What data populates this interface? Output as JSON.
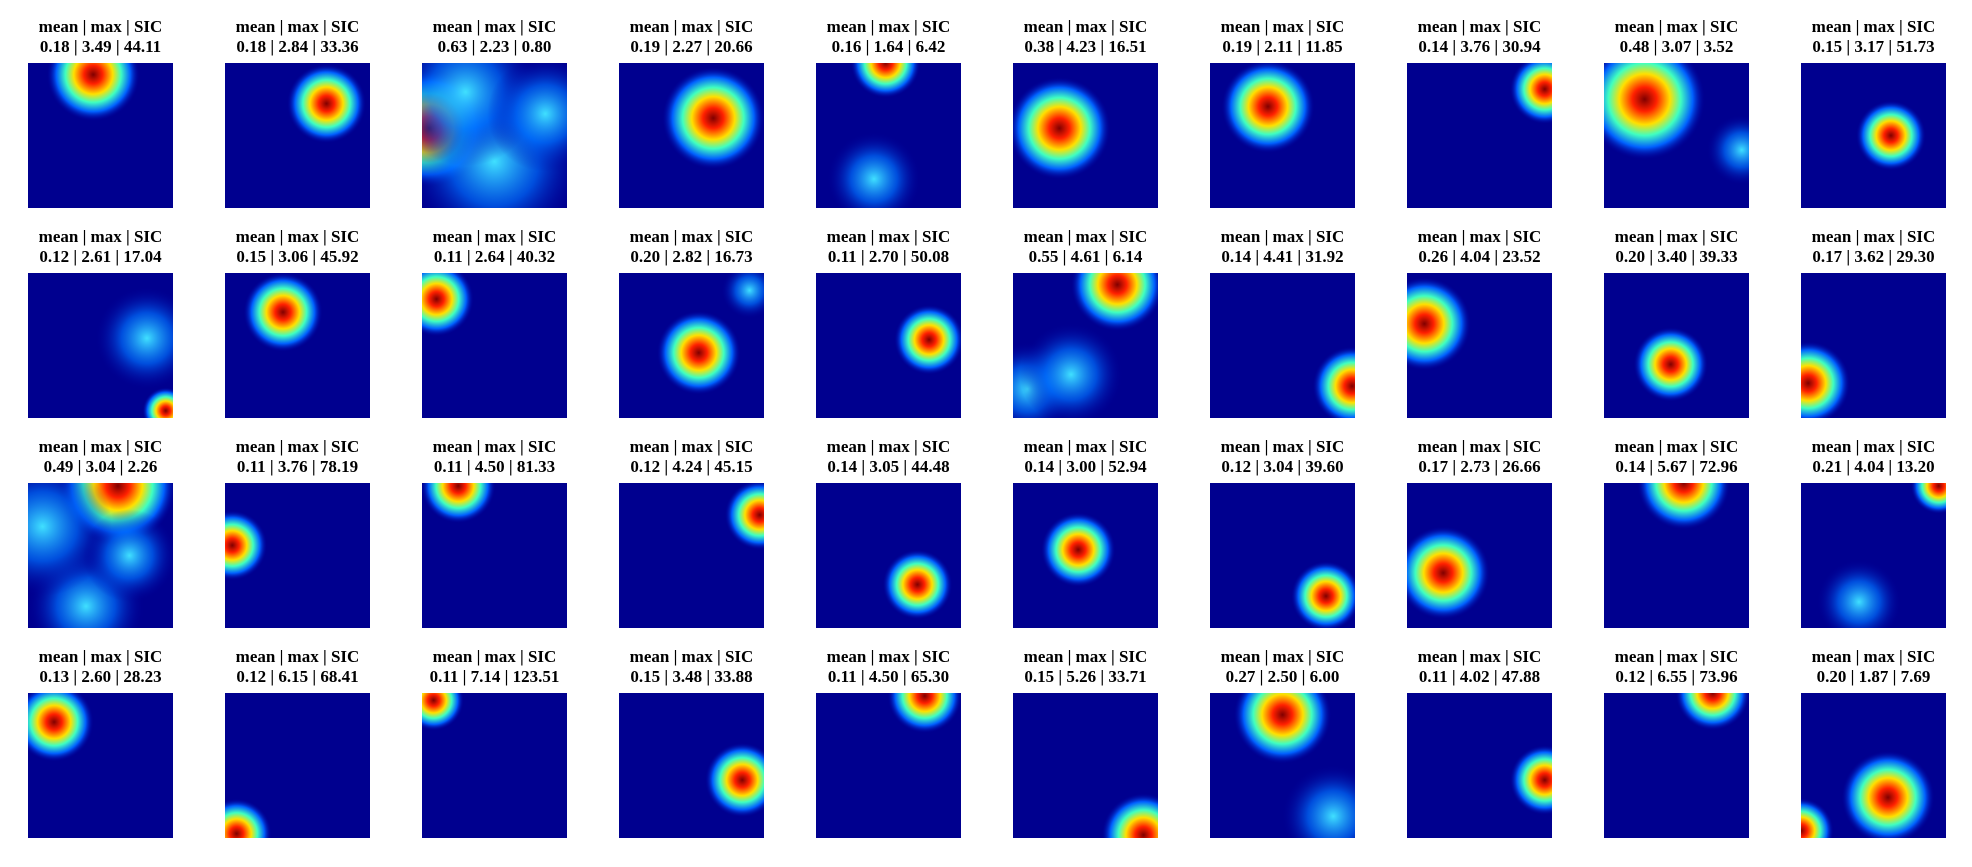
{
  "panels": [
    {
      "title": "mean | max | SIC",
      "stats": "0.18 | 3.49 | 44.11"
    },
    {
      "title": "mean | max | SIC",
      "stats": "0.18 | 2.84 | 33.36"
    },
    {
      "title": "mean | max | SIC",
      "stats": "0.63 | 2.23 | 0.80"
    },
    {
      "title": "mean | max | SIC",
      "stats": "0.19 | 2.27 | 20.66"
    },
    {
      "title": "mean | max | SIC",
      "stats": "0.16 | 1.64 | 6.42"
    },
    {
      "title": "mean | max | SIC",
      "stats": "0.38 | 4.23 | 16.51"
    },
    {
      "title": "mean | max | SIC",
      "stats": "0.19 | 2.11 | 11.85"
    },
    {
      "title": "mean | max | SIC",
      "stats": "0.14 | 3.76 | 30.94"
    },
    {
      "title": "mean | max | SIC",
      "stats": "0.48 | 3.07 | 3.52"
    },
    {
      "title": "mean | max | SIC",
      "stats": "0.15 | 3.17 | 51.73"
    },
    {
      "title": "mean | max | SIC",
      "stats": "0.12 | 2.61 | 17.04"
    },
    {
      "title": "mean | max | SIC",
      "stats": "0.15 | 3.06 | 45.92"
    },
    {
      "title": "mean | max | SIC",
      "stats": "0.11 | 2.64 | 40.32"
    },
    {
      "title": "mean | max | SIC",
      "stats": "0.20 | 2.82 | 16.73"
    },
    {
      "title": "mean | max | SIC",
      "stats": "0.11 | 2.70 | 50.08"
    },
    {
      "title": "mean | max | SIC",
      "stats": "0.55 | 4.61 | 6.14"
    },
    {
      "title": "mean | max | SIC",
      "stats": "0.14 | 4.41 | 31.92"
    },
    {
      "title": "mean | max | SIC",
      "stats": "0.26 | 4.04 | 23.52"
    },
    {
      "title": "mean | max | SIC",
      "stats": "0.20 | 3.40 | 39.33"
    },
    {
      "title": "mean | max | SIC",
      "stats": "0.17 | 3.62 | 29.30"
    },
    {
      "title": "mean | max | SIC",
      "stats": "0.49 | 3.04 | 2.26"
    },
    {
      "title": "mean | max | SIC",
      "stats": "0.11 | 3.76 | 78.19"
    },
    {
      "title": "mean | max | SIC",
      "stats": "0.11 | 4.50 | 81.33"
    },
    {
      "title": "mean | max | SIC",
      "stats": "0.12 | 4.24 | 45.15"
    },
    {
      "title": "mean | max | SIC",
      "stats": "0.14 | 3.05 | 44.48"
    },
    {
      "title": "mean | max | SIC",
      "stats": "0.14 | 3.00 | 52.94"
    },
    {
      "title": "mean | max | SIC",
      "stats": "0.12 | 3.04 | 39.60"
    },
    {
      "title": "mean | max | SIC",
      "stats": "0.17 | 2.73 | 26.66"
    },
    {
      "title": "mean | max | SIC",
      "stats": "0.14 | 5.67 | 72.96"
    },
    {
      "title": "mean | max | SIC",
      "stats": "0.21 | 4.04 | 13.20"
    },
    {
      "title": "mean | max | SIC",
      "stats": "0.13 | 2.60 | 28.23"
    },
    {
      "title": "mean | max | SIC",
      "stats": "0.12 | 6.15 | 68.41"
    },
    {
      "title": "mean | max | SIC",
      "stats": "0.11 | 7.14 | 123.51"
    },
    {
      "title": "mean | max | SIC",
      "stats": "0.15 | 3.48 | 33.88"
    },
    {
      "title": "mean | max | SIC",
      "stats": "0.11 | 4.50 | 65.30"
    },
    {
      "title": "mean | max | SIC",
      "stats": "0.15 | 5.26 | 33.71"
    },
    {
      "title": "mean | max | SIC",
      "stats": "0.27 | 2.50 | 6.00"
    },
    {
      "title": "mean | max | SIC",
      "stats": "0.11 | 4.02 | 47.88"
    },
    {
      "title": "mean | max | SIC",
      "stats": "0.12 | 6.55 | 73.96"
    },
    {
      "title": "mean | max | SIC",
      "stats": "0.20 | 1.87 | 7.69"
    }
  ]
}
